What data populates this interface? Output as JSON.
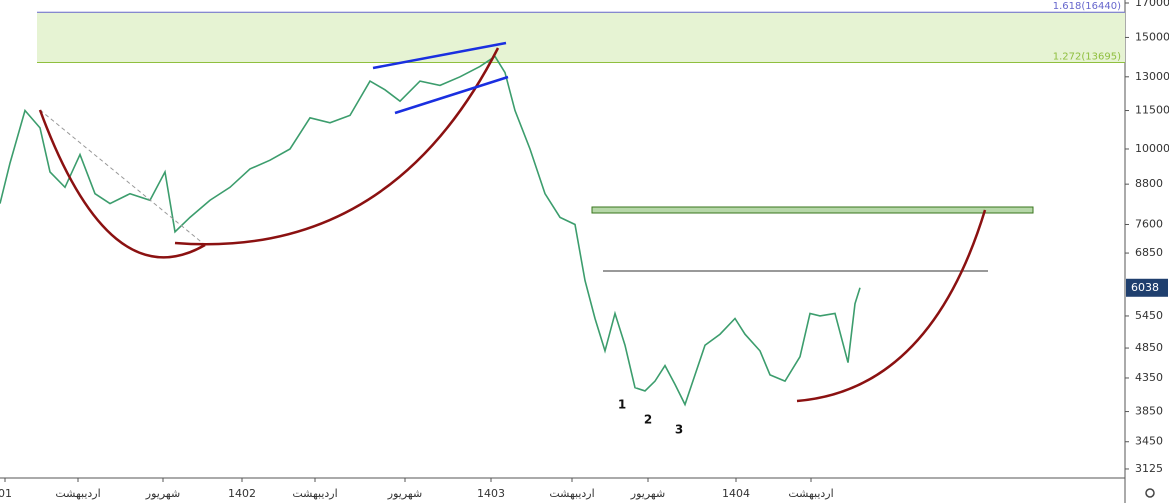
{
  "chart_data": {
    "type": "line",
    "log_scale": true,
    "color": "#3c9d6d",
    "x": [
      0,
      10,
      25,
      40,
      50,
      65,
      80,
      95,
      110,
      130,
      150,
      165,
      175,
      190,
      210,
      230,
      250,
      270,
      290,
      310,
      330,
      350,
      370,
      385,
      400,
      420,
      440,
      460,
      480,
      495,
      505,
      515,
      530,
      545,
      560,
      575,
      585,
      595,
      605,
      615,
      625,
      635,
      645,
      655,
      665,
      675,
      685,
      695,
      705,
      720,
      735,
      745,
      760,
      770,
      785,
      800,
      810,
      820,
      835,
      848,
      855,
      860
    ],
    "values": [
      8200,
      9500,
      11500,
      10800,
      9200,
      8700,
      9800,
      8500,
      8200,
      8500,
      8300,
      9200,
      7400,
      7800,
      8300,
      8700,
      9300,
      9600,
      10000,
      11200,
      11000,
      11300,
      12800,
      12400,
      11900,
      12800,
      12600,
      13000,
      13500,
      14000,
      13200,
      11500,
      10000,
      8500,
      7800,
      7600,
      6200,
      5400,
      4800,
      5500,
      4900,
      4200,
      4150,
      4300,
      4550,
      4250,
      3950,
      4400,
      4900,
      5100,
      5400,
      5100,
      4800,
      4400,
      4300,
      4700,
      5500,
      5450,
      5500,
      4600,
      5700,
      6038
    ],
    "xlim": [
      0,
      1125
    ],
    "ylim": [
      3024,
      17187
    ],
    "yticks": [
      17000,
      15000,
      13000,
      11500,
      10000,
      8800,
      7600,
      6850,
      5450,
      4850,
      4350,
      3850,
      3450,
      3125
    ],
    "xticks": [
      {
        "value": 5,
        "label": "01"
      },
      {
        "value": 78,
        "label": "اردیبهشت"
      },
      {
        "value": 163,
        "label": "شهریور"
      },
      {
        "value": 242,
        "label": "1402"
      },
      {
        "value": 315,
        "label": "اردیبهشت"
      },
      {
        "value": 405,
        "label": "شهریور"
      },
      {
        "value": 491,
        "label": "1403"
      },
      {
        "value": 572,
        "label": "اردیبهشت"
      },
      {
        "value": 648,
        "label": "شهریور"
      },
      {
        "value": 736,
        "label": "1404"
      },
      {
        "value": 811,
        "label": "اردیبهشت"
      }
    ],
    "fib_levels": [
      {
        "label": "1.618(16440)",
        "value": 16440
      },
      {
        "label": "1.272(13695)",
        "value": 13695
      }
    ],
    "wave_labels": [
      "1",
      "2",
      "3"
    ]
  }
}
